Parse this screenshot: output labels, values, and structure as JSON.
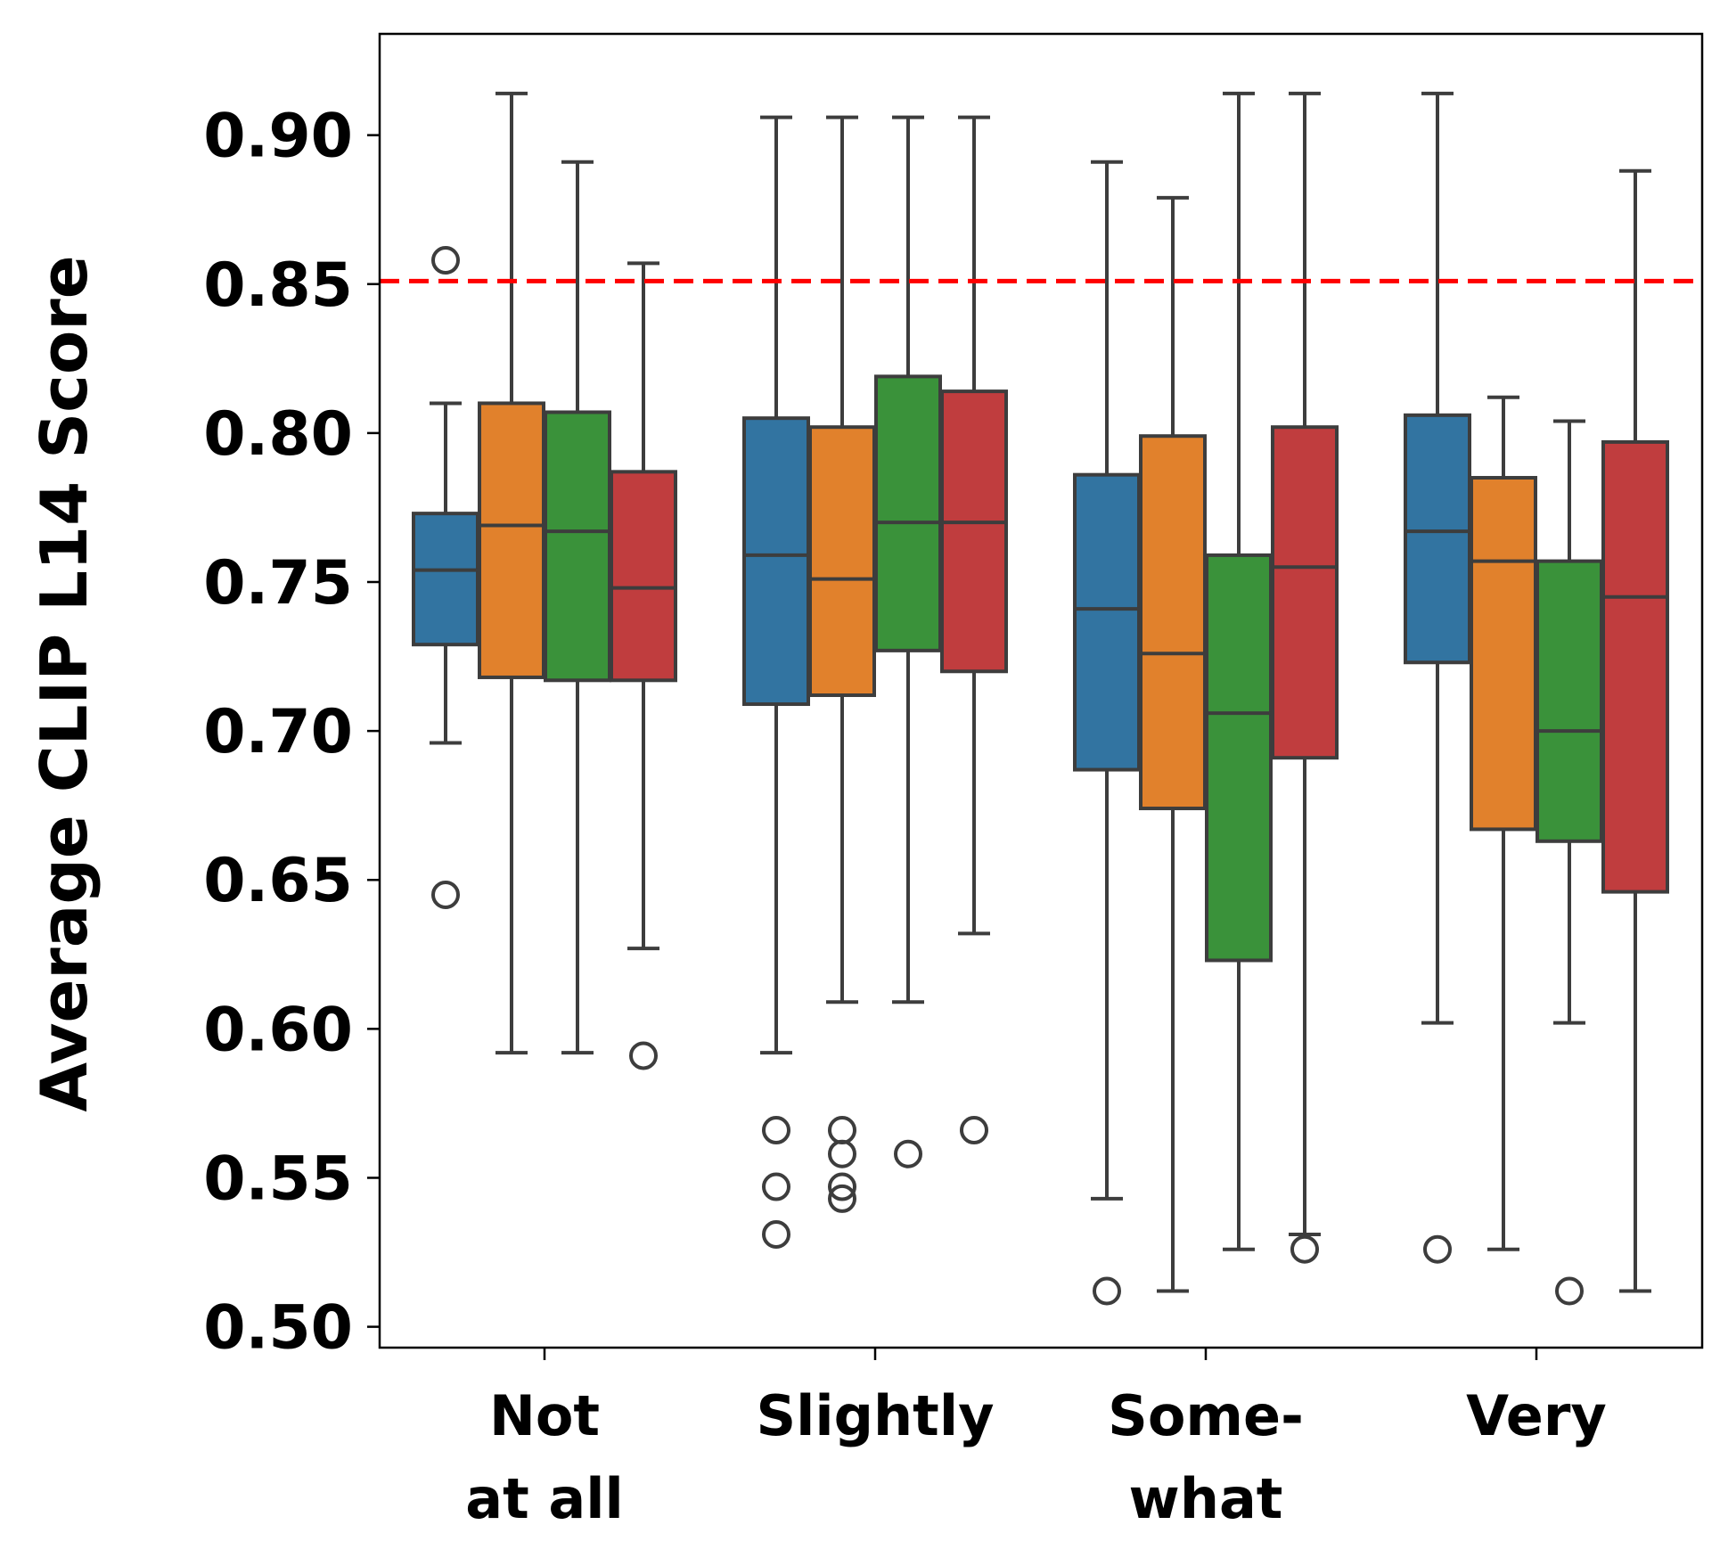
{
  "chart_data": {
    "type": "box",
    "title": "",
    "xlabel": "",
    "ylabel": "Average CLIP L14 Score",
    "ylim": [
      0.493,
      0.934
    ],
    "yticks": [
      0.5,
      0.55,
      0.6,
      0.65,
      0.7,
      0.75,
      0.8,
      0.85,
      0.9
    ],
    "ytick_labels": [
      "0.50",
      "0.55",
      "0.60",
      "0.65",
      "0.70",
      "0.75",
      "0.80",
      "0.85",
      "0.90"
    ],
    "categories": [
      {
        "line1": "Not",
        "line2": "at all"
      },
      {
        "line1": "Slightly",
        "line2": ""
      },
      {
        "line1": "Some-",
        "line2": "what"
      },
      {
        "line1": "Very",
        "line2": ""
      }
    ],
    "series_colors": [
      "#3274a1",
      "#e1812c",
      "#3a923a",
      "#c03d3e"
    ],
    "reference_line": {
      "y": 0.851,
      "color": "#ff0000",
      "style": "dashed"
    },
    "groups": [
      [
        {
          "whislo": 0.696,
          "q1": 0.729,
          "med": 0.754,
          "q3": 0.773,
          "whishi": 0.81,
          "fliers": [
            0.858,
            0.645
          ]
        },
        {
          "whislo": 0.592,
          "q1": 0.718,
          "med": 0.769,
          "q3": 0.81,
          "whishi": 0.914,
          "fliers": []
        },
        {
          "whislo": 0.592,
          "q1": 0.717,
          "med": 0.767,
          "q3": 0.807,
          "whishi": 0.891,
          "fliers": []
        },
        {
          "whislo": 0.627,
          "q1": 0.717,
          "med": 0.748,
          "q3": 0.787,
          "whishi": 0.857,
          "fliers": [
            0.591
          ]
        }
      ],
      [
        {
          "whislo": 0.592,
          "q1": 0.709,
          "med": 0.759,
          "q3": 0.805,
          "whishi": 0.906,
          "fliers": [
            0.566,
            0.547,
            0.531
          ]
        },
        {
          "whislo": 0.609,
          "q1": 0.712,
          "med": 0.751,
          "q3": 0.802,
          "whishi": 0.906,
          "fliers": [
            0.566,
            0.558,
            0.547,
            0.543
          ]
        },
        {
          "whislo": 0.609,
          "q1": 0.727,
          "med": 0.77,
          "q3": 0.819,
          "whishi": 0.906,
          "fliers": [
            0.558
          ]
        },
        {
          "whislo": 0.632,
          "q1": 0.72,
          "med": 0.77,
          "q3": 0.814,
          "whishi": 0.906,
          "fliers": [
            0.566
          ]
        }
      ],
      [
        {
          "whislo": 0.543,
          "q1": 0.687,
          "med": 0.741,
          "q3": 0.786,
          "whishi": 0.891,
          "fliers": [
            0.512
          ]
        },
        {
          "whislo": 0.512,
          "q1": 0.674,
          "med": 0.726,
          "q3": 0.799,
          "whishi": 0.879,
          "fliers": []
        },
        {
          "whislo": 0.526,
          "q1": 0.623,
          "med": 0.706,
          "q3": 0.759,
          "whishi": 0.914,
          "fliers": []
        },
        {
          "whislo": 0.531,
          "q1": 0.691,
          "med": 0.755,
          "q3": 0.802,
          "whishi": 0.914,
          "fliers": [
            0.526
          ]
        }
      ],
      [
        {
          "whislo": 0.602,
          "q1": 0.723,
          "med": 0.767,
          "q3": 0.806,
          "whishi": 0.914,
          "fliers": [
            0.526
          ]
        },
        {
          "whislo": 0.526,
          "q1": 0.667,
          "med": 0.757,
          "q3": 0.785,
          "whishi": 0.812,
          "fliers": []
        },
        {
          "whislo": 0.602,
          "q1": 0.663,
          "med": 0.7,
          "q3": 0.757,
          "whishi": 0.804,
          "fliers": [
            0.512
          ]
        },
        {
          "whislo": 0.512,
          "q1": 0.646,
          "med": 0.745,
          "q3": 0.797,
          "whishi": 0.888,
          "fliers": []
        }
      ]
    ]
  }
}
